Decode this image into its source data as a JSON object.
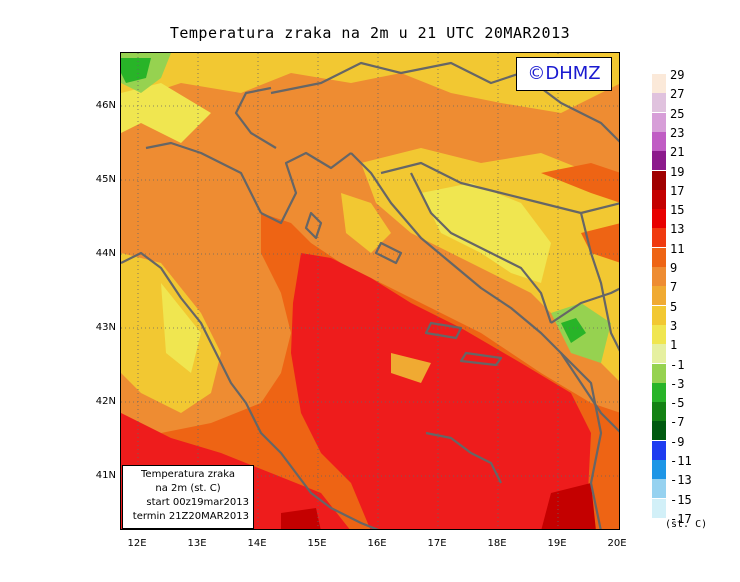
{
  "title": "Temperatura zraka na 2m u 21 UTC 20MAR2013",
  "copyright": "©DHMZ",
  "info_box": {
    "line1": "Temperatura zraka",
    "line2": "na 2m (st. C)",
    "line3": "start 00z19mar2013",
    "line4": "termin 21Z20MAR2013"
  },
  "lat_labels": [
    "46N",
    "45N",
    "44N",
    "43N",
    "42N",
    "41N"
  ],
  "lon_labels": [
    "12E",
    "13E",
    "14E",
    "15E",
    "16E",
    "17E",
    "18E",
    "19E",
    "20E"
  ],
  "legend": {
    "unit": "(st. C)",
    "labels": [
      "29",
      "27",
      "25",
      "23",
      "21",
      "19",
      "17",
      "15",
      "13",
      "11",
      "9",
      "7",
      "5",
      "3",
      "1",
      "-1",
      "-3",
      "-5",
      "-7",
      "-9",
      "-11",
      "-13",
      "-15",
      "-17"
    ],
    "colors": [
      "#fbe9d9",
      "#e0c2de",
      "#d79ed8",
      "#c05cc4",
      "#8c1a8c",
      "#a00000",
      "#c40000",
      "#e80000",
      "#f03a0f",
      "#ee6414",
      "#ee8c32",
      "#f0aa32",
      "#f2c832",
      "#f0e650",
      "#e6f0a0",
      "#96d250",
      "#28b428",
      "#148214",
      "#005a10",
      "#1e3cf0",
      "#1e96e6",
      "#96d2f0",
      "#d2f0f8",
      "#ffffff"
    ]
  },
  "map": {
    "region": "Adriatic Sea and Croatia",
    "variable": "2 m air temperature",
    "warm_color": "#ee1c1c",
    "land_color": "#f0aa32"
  }
}
